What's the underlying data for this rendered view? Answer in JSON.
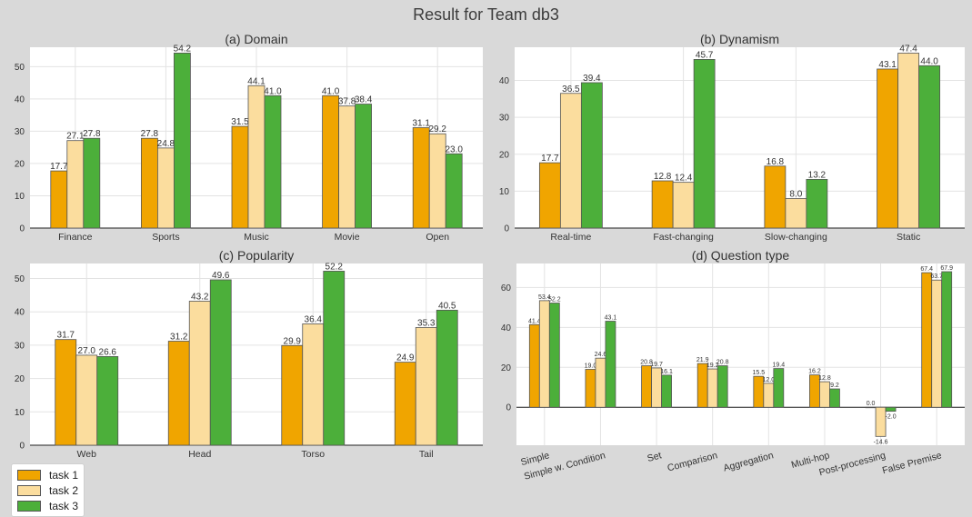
{
  "title": "Result for Team db3",
  "colors": {
    "task1": "#f0a500",
    "task2": "#fbdd9e",
    "task3": "#4caf3a"
  },
  "legend": [
    {
      "label": "task 1",
      "color": "#f0a500"
    },
    {
      "label": "task 2",
      "color": "#fbdd9e"
    },
    {
      "label": "task 3",
      "color": "#4caf3a"
    }
  ],
  "chart_data": [
    {
      "type": "bar",
      "title": "(a) Domain",
      "categories": [
        "Finance",
        "Sports",
        "Music",
        "Movie",
        "Open"
      ],
      "series": [
        {
          "name": "task 1",
          "values": [
            17.7,
            27.8,
            31.5,
            41.0,
            31.1
          ]
        },
        {
          "name": "task 2",
          "values": [
            27.1,
            24.8,
            44.1,
            37.8,
            29.2
          ]
        },
        {
          "name": "task 3",
          "values": [
            27.8,
            54.2,
            41.0,
            38.4,
            23.0
          ]
        }
      ],
      "ylim": [
        0,
        56
      ],
      "yticks": [
        0,
        10,
        20,
        30,
        40,
        50
      ],
      "grid": true
    },
    {
      "type": "bar",
      "title": "(b) Dynamism",
      "categories": [
        "Real-time",
        "Fast-changing",
        "Slow-changing",
        "Static"
      ],
      "series": [
        {
          "name": "task 1",
          "values": [
            17.7,
            12.8,
            16.8,
            43.1
          ]
        },
        {
          "name": "task 2",
          "values": [
            36.5,
            12.4,
            8.0,
            47.4
          ]
        },
        {
          "name": "task 3",
          "values": [
            39.4,
            45.7,
            13.2,
            44.0
          ]
        }
      ],
      "ylim": [
        0,
        49
      ],
      "yticks": [
        0,
        10,
        20,
        30,
        40
      ],
      "grid": true
    },
    {
      "type": "bar",
      "title": "(c) Popularity",
      "categories": [
        "Web",
        "Head",
        "Torso",
        "Tail"
      ],
      "series": [
        {
          "name": "task 1",
          "values": [
            31.7,
            31.2,
            29.9,
            24.9
          ]
        },
        {
          "name": "task 2",
          "values": [
            27.0,
            43.2,
            36.4,
            35.3
          ]
        },
        {
          "name": "task 3",
          "values": [
            26.6,
            49.6,
            52.2,
            40.5
          ]
        }
      ],
      "ylim": [
        0,
        54.5
      ],
      "yticks": [
        0,
        10,
        20,
        30,
        40,
        50
      ],
      "grid": true
    },
    {
      "type": "bar",
      "title": "(d) Question type",
      "categories": [
        "Simple",
        "Simple w. Condition",
        "Set",
        "Comparison",
        "Aggregation",
        "Multi-hop",
        "Post-processing",
        "False Premise"
      ],
      "series": [
        {
          "name": "task 1",
          "values": [
            41.4,
            19.0,
            20.8,
            21.9,
            15.5,
            16.2,
            0.0,
            67.4
          ]
        },
        {
          "name": "task 2",
          "values": [
            53.4,
            24.6,
            19.7,
            19.2,
            12.0,
            12.8,
            -14.6,
            63.7
          ]
        },
        {
          "name": "task 3",
          "values": [
            52.2,
            43.1,
            16.1,
            20.8,
            19.4,
            9.2,
            -2.0,
            67.9
          ]
        }
      ],
      "ylim": [
        -19,
        72
      ],
      "yticks": [
        0,
        20,
        40,
        60
      ],
      "grid": true
    }
  ]
}
